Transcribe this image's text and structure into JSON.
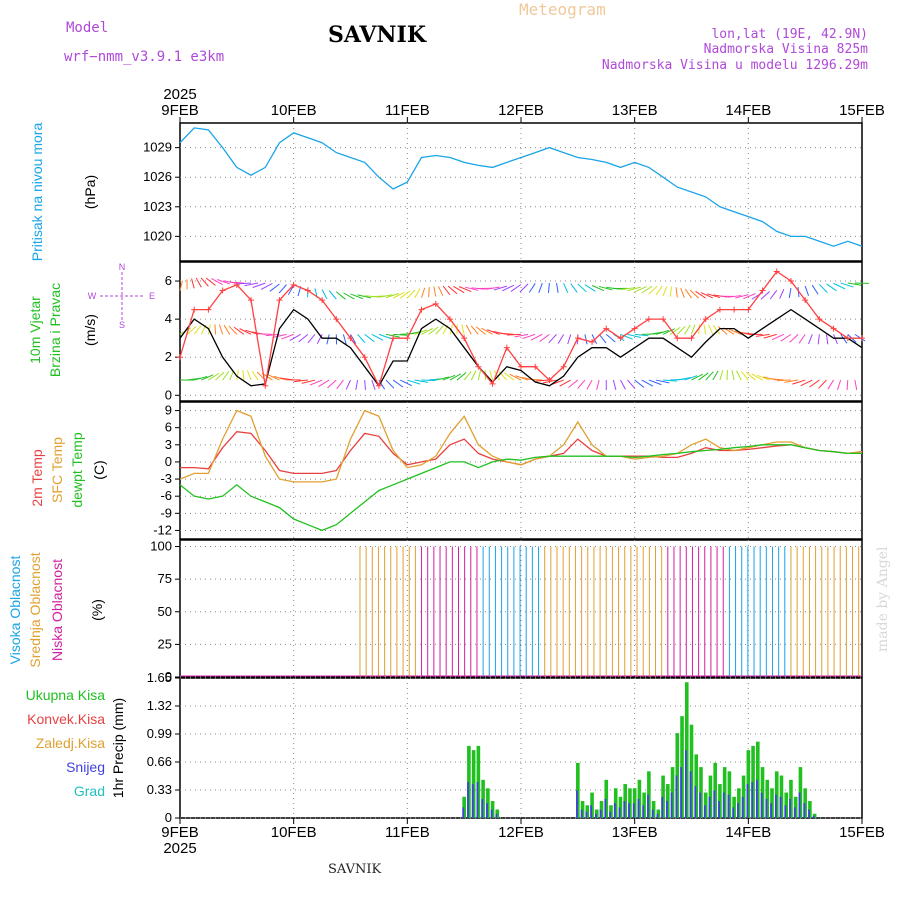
{
  "header": {
    "model_label": "Model",
    "model_name": "wrf−nmm_v3.9.1  e3km",
    "title": "SAVNIK",
    "subtitle": "Meteogram",
    "lonlat": "lon,lat (19E, 42.9N)",
    "elevation": "Nadmorska Visina 825m",
    "model_elevation": "Nadmorska Visina u modelu 1296.29m"
  },
  "footer": {
    "station": "SAVNIK",
    "credit": "made by Angel"
  },
  "time_axis": {
    "year": "2025",
    "labels": [
      "9FEB",
      "10FEB",
      "11FEB",
      "12FEB",
      "13FEB",
      "14FEB",
      "15FEB"
    ],
    "hours_total": 144
  },
  "colors": {
    "pressure": "#1aa4e8",
    "wind": "#000000",
    "gust": "#ff4040",
    "temp2m": "#e84040",
    "sfc": "#e0a030",
    "dewpt": "#20c020",
    "high_cloud": "#1aa4e8",
    "mid_cloud": "#e0a030",
    "low_cloud": "#d020a0",
    "total_precip": "#20c020",
    "conv_precip": "#e84040",
    "snow": "#4040e0"
  },
  "chart_data": [
    {
      "type": "line",
      "title": "Pritisak na nivou mora",
      "ylabel": "(hPa)",
      "yticks": [
        "1020",
        "1023",
        "1026",
        "1029"
      ],
      "ylim": [
        1017.5,
        1031.5
      ],
      "x_hours": [
        0,
        3,
        6,
        9,
        12,
        15,
        18,
        21,
        24,
        27,
        30,
        33,
        36,
        39,
        42,
        45,
        48,
        51,
        54,
        57,
        60,
        63,
        66,
        69,
        72,
        75,
        78,
        81,
        84,
        87,
        90,
        93,
        96,
        99,
        102,
        105,
        108,
        111,
        114,
        117,
        120,
        123,
        126,
        129,
        132,
        135,
        138,
        141,
        144
      ],
      "series": [
        {
          "name": "MSLP",
          "values": [
            1029.5,
            1031,
            1030.8,
            1029,
            1027,
            1026.2,
            1027,
            1029.5,
            1030.5,
            1030,
            1029.5,
            1028.5,
            1028,
            1027.5,
            1026,
            1024.8,
            1025.5,
            1028,
            1028.2,
            1028,
            1027.5,
            1027.2,
            1027,
            1027.5,
            1028,
            1028.5,
            1029,
            1028.5,
            1028,
            1027.8,
            1027.5,
            1027,
            1027.5,
            1027,
            1026,
            1025,
            1024.5,
            1024,
            1023,
            1022.5,
            1022,
            1021.5,
            1020.5,
            1020,
            1020,
            1019.5,
            1019,
            1019.5,
            1019
          ]
        }
      ]
    },
    {
      "type": "line",
      "title": "10m Vjetar Brzina i Pravac",
      "ylabel": "(m/s)",
      "yticks": [
        "0",
        "2",
        "4",
        "6"
      ],
      "ylim": [
        -0.3,
        7
      ],
      "x_hours": [
        0,
        3,
        6,
        9,
        12,
        15,
        18,
        21,
        24,
        27,
        30,
        33,
        36,
        39,
        42,
        45,
        48,
        51,
        54,
        57,
        60,
        63,
        66,
        69,
        72,
        75,
        78,
        81,
        84,
        87,
        90,
        93,
        96,
        99,
        102,
        105,
        108,
        111,
        114,
        117,
        120,
        123,
        126,
        129,
        132,
        135,
        138,
        141,
        144
      ],
      "series": [
        {
          "name": "Wind speed",
          "values": [
            3,
            4,
            3.5,
            2,
            1,
            0.5,
            0.6,
            3.5,
            4.5,
            4,
            3,
            3,
            2.5,
            1.5,
            0.5,
            1.8,
            1.8,
            3.5,
            4,
            3.5,
            2.5,
            1.5,
            0.7,
            1.5,
            1.3,
            0.7,
            0.5,
            1,
            2,
            2.5,
            2.5,
            2,
            2.5,
            3,
            3,
            2.5,
            2,
            2.8,
            3.5,
            3.5,
            3,
            3.5,
            4,
            4.5,
            4,
            3.5,
            3,
            3,
            2.5
          ]
        },
        {
          "name": "Gust",
          "values": [
            2,
            4.5,
            4.5,
            5.5,
            5.8,
            5,
            0.5,
            5,
            5.8,
            5.5,
            5,
            4,
            3,
            2,
            0.5,
            3,
            3,
            4.5,
            4.8,
            4,
            3,
            1.5,
            0.6,
            2.5,
            1.5,
            1.5,
            0.8,
            1.5,
            3,
            2.8,
            3.5,
            3,
            3.5,
            4,
            4,
            3,
            3,
            4,
            4.5,
            4.5,
            4.5,
            5.5,
            6.5,
            6,
            5,
            4,
            3.5,
            3,
            3
          ]
        }
      ],
      "direction_legend": {
        "n": "N",
        "s": "S",
        "w": "W",
        "e": "E"
      }
    },
    {
      "type": "line",
      "title": "2m Temp / SFC Temp / dewpt Temp",
      "ylabel": "(C)",
      "yticks": [
        "-12",
        "-9",
        "-6",
        "-3",
        "0",
        "3",
        "6",
        "9"
      ],
      "ylim": [
        -13.5,
        10.5
      ],
      "x_hours": [
        0,
        3,
        6,
        9,
        12,
        15,
        18,
        21,
        24,
        27,
        30,
        33,
        36,
        39,
        42,
        45,
        48,
        51,
        54,
        57,
        60,
        63,
        66,
        69,
        72,
        75,
        78,
        81,
        84,
        87,
        90,
        93,
        96,
        99,
        102,
        105,
        108,
        111,
        114,
        117,
        120,
        123,
        126,
        129,
        132,
        135,
        138,
        141,
        144
      ],
      "series": [
        {
          "name": "2m Temp",
          "values": [
            -1,
            -1,
            -1.2,
            2.5,
            5.3,
            5,
            2,
            -1.5,
            -2,
            -2,
            -2,
            -1.5,
            2,
            5,
            4.5,
            1.5,
            -0.5,
            0,
            0.5,
            3,
            4,
            1.5,
            0.5,
            0,
            -0.5,
            0.5,
            1,
            1.5,
            4,
            2,
            1,
            1,
            1,
            1,
            0.8,
            0.8,
            1.5,
            2.5,
            2,
            2,
            2.2,
            2.5,
            2.8,
            3,
            2.5,
            2,
            1.8,
            1.5,
            1.8
          ]
        },
        {
          "name": "SFC Temp",
          "values": [
            -3,
            -2,
            -2,
            4,
            9,
            8,
            1,
            -3,
            -3.5,
            -3.5,
            -3.5,
            -3,
            4,
            9,
            8,
            2,
            -1,
            -0.5,
            1,
            5,
            8,
            3,
            1,
            0,
            -0.5,
            0.5,
            1,
            3,
            7,
            3,
            1,
            1,
            0.5,
            0.8,
            1,
            1.5,
            3,
            4,
            2.5,
            2,
            2.5,
            3,
            3.5,
            3.5,
            2.5,
            2,
            1.8,
            1.5,
            1.8
          ]
        },
        {
          "name": "dewpt Temp",
          "values": [
            -4,
            -6,
            -6.5,
            -6,
            -4,
            -6,
            -7,
            -8,
            -10,
            -11,
            -12,
            -11,
            -9,
            -7,
            -5,
            -4,
            -3,
            -2,
            -1,
            0,
            0,
            -1,
            0,
            0.5,
            0.3,
            0.8,
            1,
            1,
            1,
            1,
            1,
            1,
            0.8,
            1,
            1.3,
            1.5,
            1.8,
            2,
            2.2,
            2.5,
            2.7,
            3,
            3,
            3,
            2.5,
            2,
            1.8,
            1.5,
            1.5
          ]
        }
      ]
    },
    {
      "type": "bar",
      "title": "Visoka / Srednja / Niska Oblacnost",
      "ylabel": "(%)",
      "yticks": [
        "0",
        "25",
        "50",
        "75",
        "100"
      ],
      "ylim": [
        0,
        105
      ],
      "note": "cloud cover per hour, 100% columns from about hour 38 to 144",
      "cloudy_from_hour": 38,
      "values": [
        100
      ]
    },
    {
      "type": "bar",
      "title": "1hr Precip",
      "ylabel": "1hr Precip (mm)",
      "yticks": [
        "0",
        "0.33",
        "0.66",
        "0.99",
        "1.32",
        "1.65"
      ],
      "ylim": [
        0,
        1.65
      ],
      "x_hours": [
        60,
        61,
        62,
        63,
        64,
        65,
        66,
        67,
        84,
        85,
        86,
        87,
        88,
        89,
        90,
        91,
        92,
        93,
        94,
        95,
        96,
        97,
        98,
        99,
        100,
        101,
        102,
        103,
        104,
        105,
        106,
        107,
        108,
        109,
        110,
        111,
        112,
        113,
        114,
        115,
        116,
        117,
        118,
        119,
        120,
        121,
        122,
        123,
        124,
        125,
        126,
        127,
        128,
        129,
        130,
        131,
        132,
        133,
        134
      ],
      "values": [
        0.25,
        0.85,
        0.8,
        0.85,
        0.45,
        0.35,
        0.2,
        0.1,
        0.65,
        0.2,
        0.15,
        0.3,
        0.1,
        0.2,
        0.45,
        0.15,
        0.35,
        0.25,
        0.4,
        0.35,
        0.35,
        0.45,
        0.3,
        0.55,
        0.2,
        0.1,
        0.5,
        0.4,
        0.6,
        1.0,
        1.2,
        1.6,
        1.1,
        0.75,
        0.6,
        0.3,
        0.5,
        0.65,
        0.4,
        0.6,
        0.55,
        0.25,
        0.35,
        0.5,
        0.8,
        0.85,
        0.9,
        0.6,
        0.45,
        0.35,
        0.55,
        0.5,
        0.3,
        0.45,
        0.25,
        0.6,
        0.35,
        0.2,
        0.05
      ],
      "legend": [
        "Ukupna Kisa",
        "Konvek.Kisa",
        "Zaledj.Kisa",
        "Snijeg",
        "Grad"
      ]
    }
  ]
}
